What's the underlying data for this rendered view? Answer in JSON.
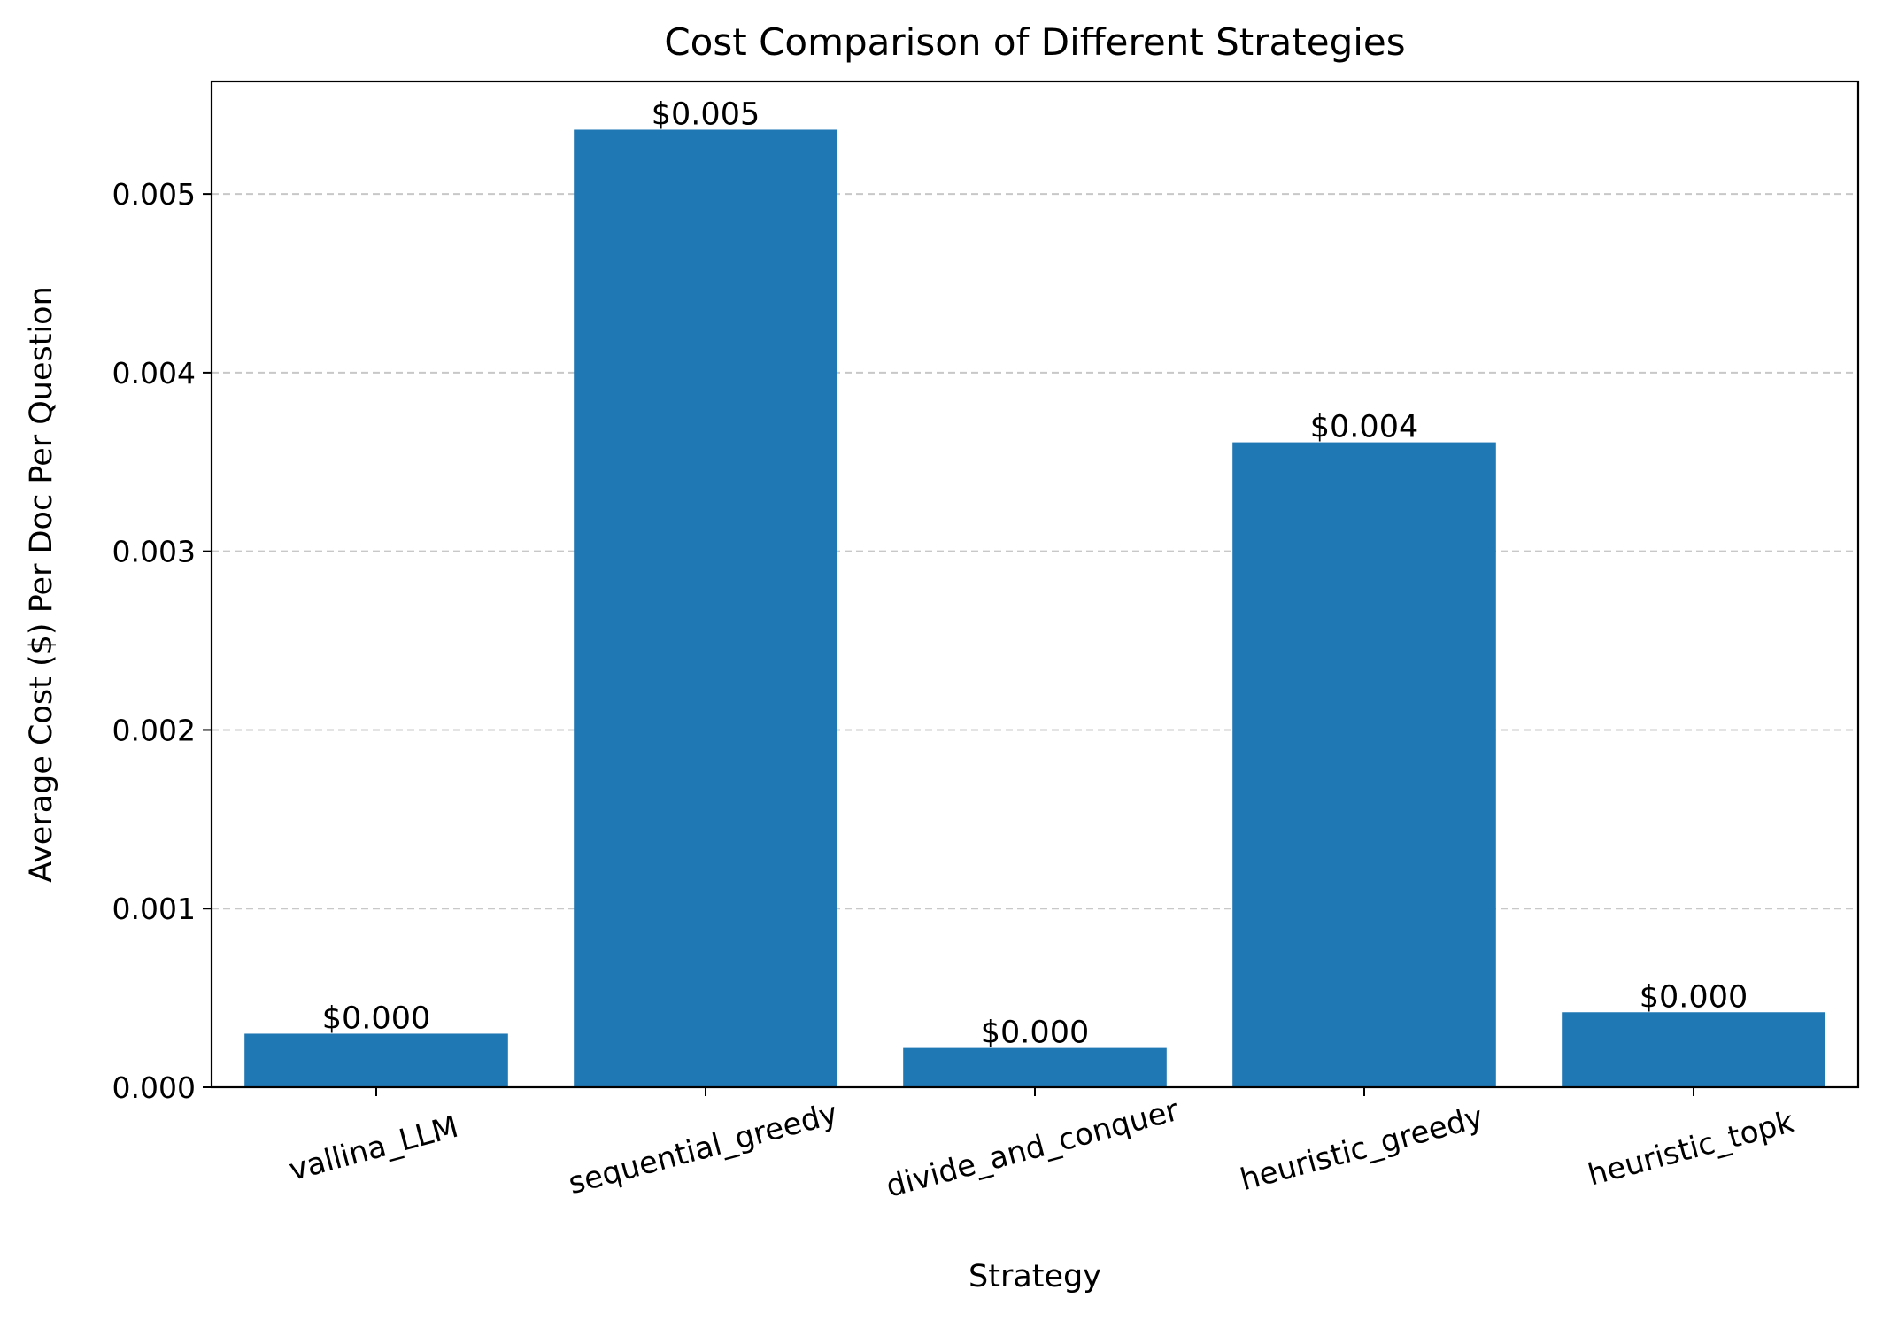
{
  "chart_data": {
    "type": "bar",
    "title": "Cost Comparison of Different Strategies",
    "xlabel": "Strategy",
    "ylabel": "Average Cost ($) Per Doc Per Question",
    "categories": [
      "vallina_LLM",
      "sequential_greedy",
      "divide_and_conquer",
      "heuristic_greedy",
      "heuristic_topk"
    ],
    "values": [
      0.0003,
      0.00536,
      0.00022,
      0.00361,
      0.00042
    ],
    "data_labels": [
      "$0.000",
      "$0.005",
      "$0.000",
      "$0.004",
      "$0.000"
    ],
    "ylim": [
      0,
      0.00563
    ],
    "yticks": [
      0,
      0.001,
      0.002,
      0.003,
      0.004,
      0.005
    ],
    "ytick_labels": [
      "0.000",
      "0.001",
      "0.002",
      "0.003",
      "0.004",
      "0.005"
    ],
    "grid": "y-dashed",
    "legend": "none",
    "bar_color": "#1f77b4",
    "grid_color": "#c8c8c8"
  }
}
